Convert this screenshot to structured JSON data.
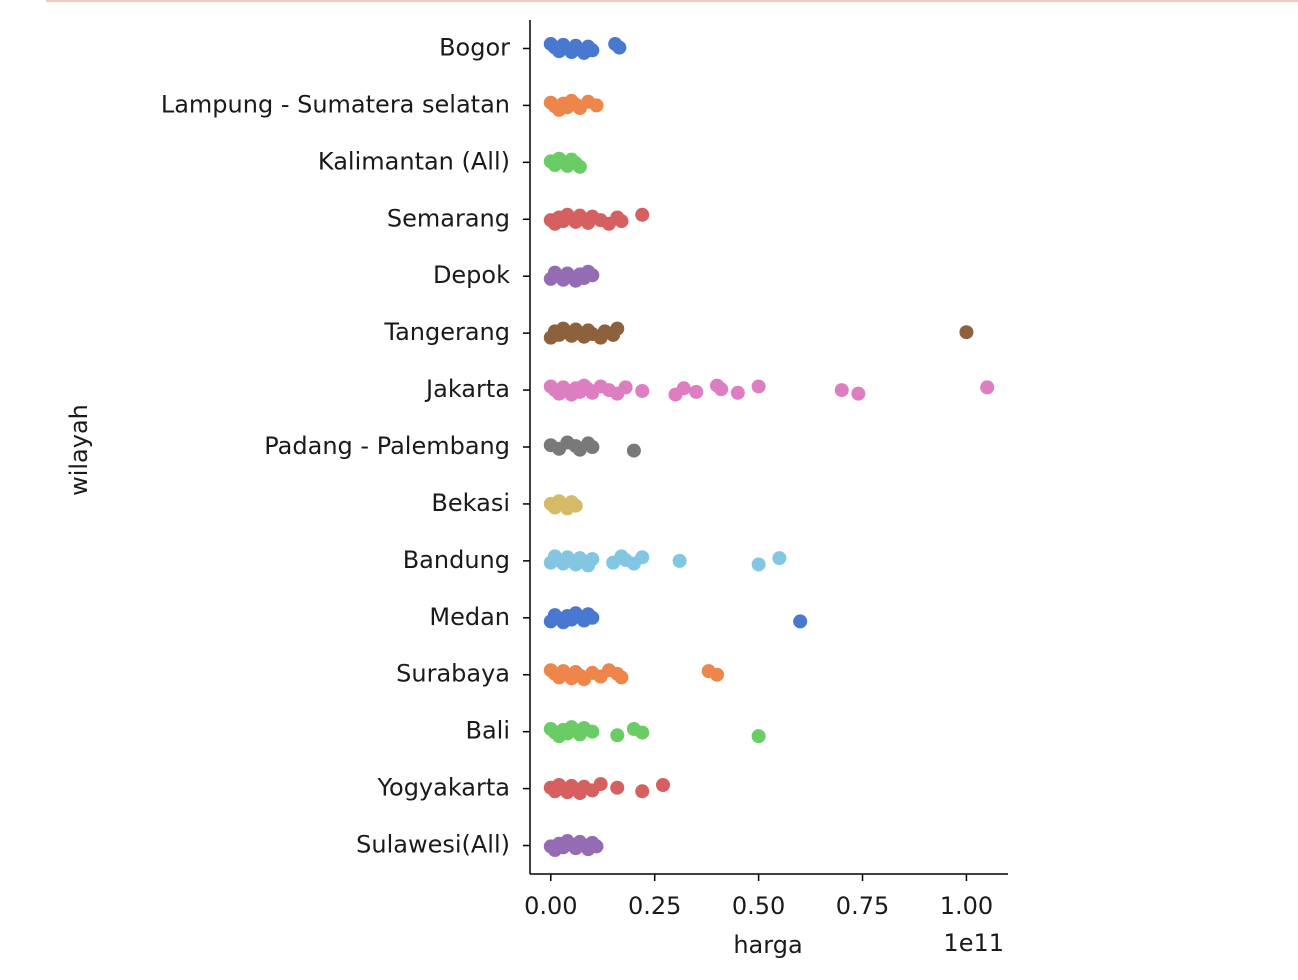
{
  "chart_data": {
    "type": "strip",
    "x_label": "harga",
    "y_label": "wilayah",
    "x_offset_label": "1e11",
    "categories": [
      "Bogor",
      "Lampung - Sumatera selatan",
      "Kalimantan (All)",
      "Semarang",
      "Depok",
      "Tangerang",
      "Jakarta",
      "Padang - Palembang",
      "Bekasi",
      "Bandung",
      "Medan",
      "Surabaya",
      "Bali",
      "Yogyakarta",
      "Sulawesi(All)"
    ],
    "colors": [
      "#4878d0",
      "#ee854a",
      "#6acc64",
      "#d65f5f",
      "#956cb4",
      "#8c613c",
      "#dc7ec0",
      "#797979",
      "#d5bb67",
      "#82c6e2",
      "#4878d0",
      "#ee854a",
      "#6acc64",
      "#d65f5f",
      "#956cb4"
    ],
    "values": [
      [
        0,
        0.01,
        0.02,
        0.03,
        0.04,
        0.05,
        0.06,
        0.07,
        0.08,
        0.09,
        0.1,
        0.155,
        0.165
      ],
      [
        0,
        0.01,
        0.02,
        0.03,
        0.04,
        0.05,
        0.06,
        0.07,
        0.09,
        0.11
      ],
      [
        0,
        0.01,
        0.02,
        0.03,
        0.04,
        0.05,
        0.06,
        0.07
      ],
      [
        0,
        0.01,
        0.02,
        0.03,
        0.04,
        0.05,
        0.06,
        0.07,
        0.08,
        0.09,
        0.1,
        0.12,
        0.14,
        0.16,
        0.17,
        0.22
      ],
      [
        0,
        0.01,
        0.02,
        0.03,
        0.04,
        0.05,
        0.06,
        0.07,
        0.08,
        0.09,
        0.1
      ],
      [
        0,
        0.01,
        0.02,
        0.03,
        0.04,
        0.05,
        0.06,
        0.07,
        0.08,
        0.09,
        0.1,
        0.12,
        0.13,
        0.15,
        0.16,
        1.0
      ],
      [
        0,
        0.01,
        0.02,
        0.03,
        0.04,
        0.05,
        0.06,
        0.07,
        0.08,
        0.09,
        0.1,
        0.12,
        0.14,
        0.16,
        0.18,
        0.22,
        0.3,
        0.32,
        0.35,
        0.4,
        0.41,
        0.45,
        0.5,
        0.7,
        0.74,
        1.05
      ],
      [
        0,
        0.02,
        0.04,
        0.06,
        0.07,
        0.09,
        0.1,
        0.2
      ],
      [
        0,
        0.01,
        0.02,
        0.03,
        0.04,
        0.05,
        0.06
      ],
      [
        0,
        0.01,
        0.02,
        0.03,
        0.04,
        0.05,
        0.06,
        0.07,
        0.08,
        0.09,
        0.1,
        0.15,
        0.17,
        0.18,
        0.2,
        0.22,
        0.31,
        0.5,
        0.55
      ],
      [
        0,
        0.01,
        0.02,
        0.03,
        0.04,
        0.05,
        0.06,
        0.07,
        0.08,
        0.09,
        0.1,
        0.6
      ],
      [
        0,
        0.01,
        0.02,
        0.03,
        0.04,
        0.05,
        0.06,
        0.07,
        0.08,
        0.1,
        0.12,
        0.14,
        0.16,
        0.17,
        0.38,
        0.4
      ],
      [
        0,
        0.01,
        0.02,
        0.03,
        0.04,
        0.05,
        0.06,
        0.07,
        0.08,
        0.1,
        0.16,
        0.2,
        0.22,
        0.5
      ],
      [
        0,
        0.01,
        0.02,
        0.03,
        0.04,
        0.05,
        0.06,
        0.07,
        0.08,
        0.1,
        0.12,
        0.16,
        0.22,
        0.27
      ],
      [
        0,
        0.01,
        0.02,
        0.03,
        0.04,
        0.05,
        0.06,
        0.07,
        0.08,
        0.09,
        0.1,
        0.11
      ]
    ],
    "xlim": [
      -0.05,
      1.1
    ],
    "xticks": [
      {
        "value": 0,
        "label": "0.00"
      },
      {
        "value": 0.25,
        "label": "0.25"
      },
      {
        "value": 0.5,
        "label": "0.50"
      },
      {
        "value": 0.75,
        "label": "0.75"
      },
      {
        "value": 1,
        "label": "1.00"
      }
    ]
  }
}
